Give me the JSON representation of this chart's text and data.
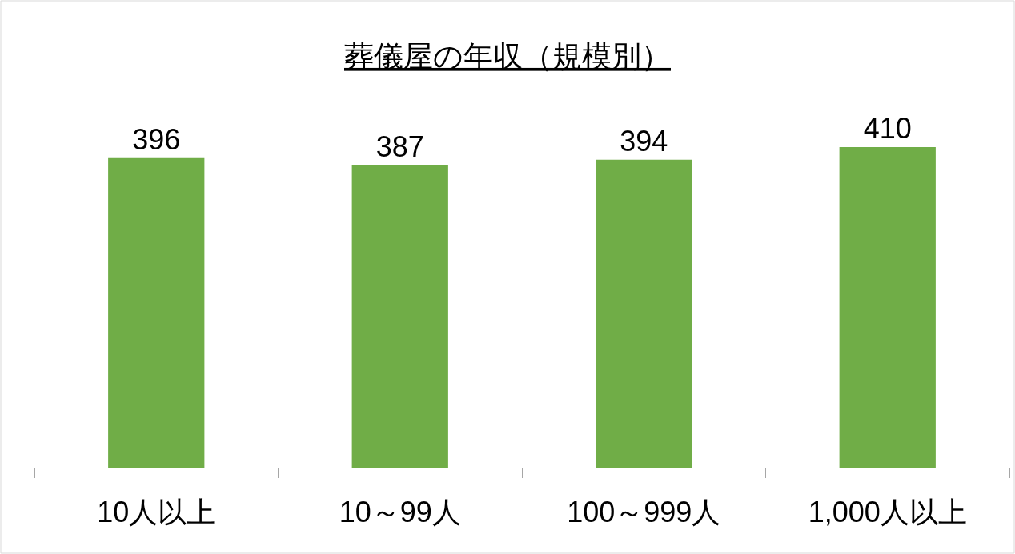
{
  "chart_data": {
    "type": "bar",
    "title": "葬儀屋の年収（規模別）",
    "categories": [
      "10人以上",
      "10～99人",
      "100～999人",
      "1,000人以上"
    ],
    "values": [
      396,
      387,
      394,
      410
    ],
    "color": "#70ad47",
    "data_labels": true,
    "grid": false,
    "tick_labels": "x"
  }
}
